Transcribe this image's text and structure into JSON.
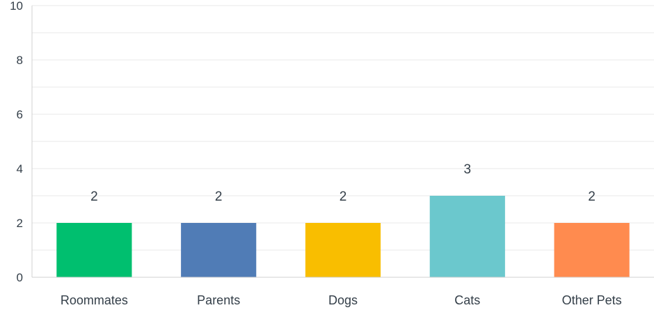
{
  "chart_data": {
    "type": "bar",
    "title": "",
    "xlabel": "",
    "ylabel": "",
    "categories": [
      "Roommates",
      "Parents",
      "Dogs",
      "Cats",
      "Other Pets"
    ],
    "values": [
      2,
      2,
      2,
      3,
      2
    ],
    "data_labels": [
      "2",
      "2",
      "2",
      "3",
      "2"
    ],
    "ylim": [
      0,
      10
    ],
    "yticks": [
      0,
      2,
      4,
      6,
      8,
      10
    ],
    "ytick_labels": [
      "0",
      "2",
      "4",
      "6",
      "8",
      "10"
    ],
    "minor_gridlines": [
      1,
      3,
      5,
      7,
      9
    ],
    "grid": true,
    "legend": "none",
    "colors": [
      "#00bf6f",
      "#507cb6",
      "#f9be00",
      "#6bc8cd",
      "#ff8b4f"
    ],
    "grid_color": "#e8e8e8",
    "axis_color": "#d0d0d0",
    "text_color": "#333e48"
  }
}
